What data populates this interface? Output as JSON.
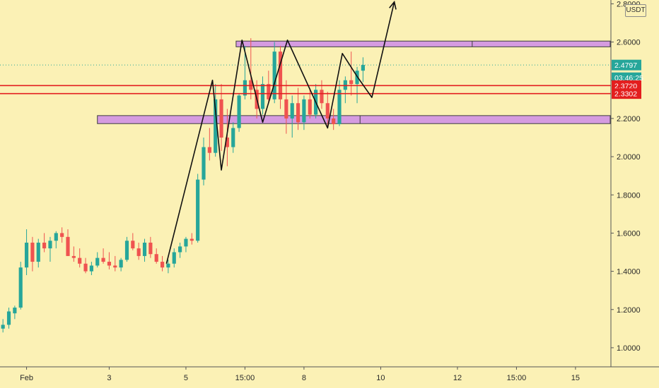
{
  "currency_badge": "USDT",
  "chart_data": {
    "type": "candlestick",
    "price_axis": {
      "ticks": [
        1.0,
        1.2,
        1.4,
        1.6,
        1.8,
        2.0,
        2.2,
        2.4,
        2.6,
        2.8
      ],
      "tick_labels": [
        "1.0000",
        "1.2000",
        "1.4000",
        "1.6000",
        "1.8000",
        "2.0000",
        "2.2000",
        "2.4000",
        "2.6000",
        "2.8000"
      ],
      "range": [
        0.9,
        2.82
      ]
    },
    "time_axis": {
      "labels": [
        {
          "label": "Feb",
          "index": 4
        },
        {
          "label": "3",
          "index": 18
        },
        {
          "label": "5",
          "index": 31
        },
        {
          "label": "15:00",
          "index": 41
        },
        {
          "label": "8",
          "index": 51
        },
        {
          "label": "10",
          "index": 64
        },
        {
          "label": "12",
          "index": 77
        },
        {
          "label": "15:00",
          "index": 87
        },
        {
          "label": "15",
          "index": 97
        }
      ],
      "index_range": [
        -0.5,
        103
      ]
    },
    "candles": [
      [
        1.1,
        1.15,
        1.08,
        1.12
      ],
      [
        1.12,
        1.21,
        1.1,
        1.19
      ],
      [
        1.18,
        1.22,
        1.15,
        1.21
      ],
      [
        1.21,
        1.45,
        1.2,
        1.42
      ],
      [
        1.42,
        1.62,
        1.38,
        1.55
      ],
      [
        1.55,
        1.58,
        1.4,
        1.45
      ],
      [
        1.45,
        1.57,
        1.42,
        1.55
      ],
      [
        1.55,
        1.6,
        1.5,
        1.52
      ],
      [
        1.52,
        1.58,
        1.45,
        1.56
      ],
      [
        1.56,
        1.61,
        1.52,
        1.6
      ],
      [
        1.6,
        1.63,
        1.55,
        1.58
      ],
      [
        1.58,
        1.62,
        1.48,
        1.48
      ],
      [
        1.48,
        1.53,
        1.45,
        1.47
      ],
      [
        1.47,
        1.52,
        1.42,
        1.44
      ],
      [
        1.44,
        1.47,
        1.39,
        1.4
      ],
      [
        1.4,
        1.45,
        1.38,
        1.43
      ],
      [
        1.43,
        1.5,
        1.42,
        1.47
      ],
      [
        1.47,
        1.52,
        1.44,
        1.45
      ],
      [
        1.45,
        1.5,
        1.41,
        1.43
      ],
      [
        1.43,
        1.48,
        1.4,
        1.42
      ],
      [
        1.42,
        1.47,
        1.4,
        1.46
      ],
      [
        1.46,
        1.58,
        1.45,
        1.56
      ],
      [
        1.56,
        1.6,
        1.51,
        1.52
      ],
      [
        1.52,
        1.55,
        1.46,
        1.48
      ],
      [
        1.48,
        1.57,
        1.45,
        1.55
      ],
      [
        1.55,
        1.58,
        1.47,
        1.49
      ],
      [
        1.49,
        1.52,
        1.44,
        1.45
      ],
      [
        1.45,
        1.48,
        1.4,
        1.42
      ],
      [
        1.42,
        1.46,
        1.39,
        1.44
      ],
      [
        1.44,
        1.52,
        1.42,
        1.5
      ],
      [
        1.5,
        1.55,
        1.47,
        1.53
      ],
      [
        1.53,
        1.58,
        1.5,
        1.57
      ],
      [
        1.57,
        1.6,
        1.54,
        1.56
      ],
      [
        1.56,
        1.91,
        1.55,
        1.88
      ],
      [
        1.88,
        2.1,
        1.85,
        2.05
      ],
      [
        2.05,
        2.15,
        1.98,
        2.02
      ],
      [
        2.02,
        2.38,
        2.0,
        2.3
      ],
      [
        2.3,
        2.38,
        2.03,
        2.1
      ],
      [
        2.1,
        2.25,
        1.95,
        2.05
      ],
      [
        2.05,
        2.18,
        2.02,
        2.15
      ],
      [
        2.15,
        2.33,
        2.13,
        2.32
      ],
      [
        2.32,
        2.58,
        2.3,
        2.4
      ],
      [
        2.4,
        2.62,
        2.3,
        2.35
      ],
      [
        2.35,
        2.4,
        2.2,
        2.25
      ],
      [
        2.25,
        2.42,
        2.22,
        2.38
      ],
      [
        2.38,
        2.45,
        2.28,
        2.3
      ],
      [
        2.3,
        2.6,
        2.28,
        2.55
      ],
      [
        2.55,
        2.58,
        2.25,
        2.3
      ],
      [
        2.3,
        2.4,
        2.12,
        2.2
      ],
      [
        2.2,
        2.32,
        2.1,
        2.28
      ],
      [
        2.28,
        2.36,
        2.14,
        2.18
      ],
      [
        2.18,
        2.32,
        2.14,
        2.3
      ],
      [
        2.3,
        2.36,
        2.2,
        2.22
      ],
      [
        2.22,
        2.38,
        2.2,
        2.35
      ],
      [
        2.35,
        2.4,
        2.25,
        2.28
      ],
      [
        2.28,
        2.34,
        2.15,
        2.2
      ],
      [
        2.2,
        2.25,
        2.14,
        2.17
      ],
      [
        2.17,
        2.4,
        2.16,
        2.35
      ],
      [
        2.35,
        2.42,
        2.28,
        2.4
      ],
      [
        2.4,
        2.55,
        2.32,
        2.38
      ],
      [
        2.38,
        2.47,
        2.28,
        2.45
      ],
      [
        2.45,
        2.52,
        2.39,
        2.48
      ]
    ],
    "annotations": {
      "red_lines": [
        2.372,
        2.3302
      ],
      "dotted_price_line": 2.4797,
      "zones": [
        {
          "x": [
            39.5,
            103
          ],
          "top": 2.605,
          "bottom": 2.575,
          "segment_split": 79.5
        },
        {
          "x": [
            16.0,
            103
          ],
          "top": 2.215,
          "bottom": 2.173,
          "segment_split": 60.5
        }
      ],
      "pattern_path": [
        [
          27.7,
          1.44
        ],
        [
          35.5,
          2.4
        ],
        [
          37.0,
          1.93
        ],
        [
          40.5,
          2.61
        ],
        [
          44.0,
          2.18
        ],
        [
          48.2,
          2.61
        ],
        [
          55.0,
          2.15
        ],
        [
          57.5,
          2.54
        ],
        [
          60.0,
          2.42
        ],
        [
          62.5,
          2.31
        ],
        [
          66.3,
          2.81
        ]
      ]
    },
    "price_tags": [
      {
        "price": 2.4797,
        "text": "2.4797",
        "color": "#26a69a"
      },
      {
        "price": 2.413,
        "text": "03:46:25",
        "color": "#26a69a"
      },
      {
        "price": 2.372,
        "text": "2.3720",
        "color": "#e31e1e"
      },
      {
        "price": 2.3302,
        "text": "2.3302",
        "color": "#e31e1e"
      }
    ],
    "colors": {
      "up": "#26a69a",
      "down": "#ef5350",
      "zone_fill": "#d59be0",
      "zone_stroke": "#3d3d3d",
      "red_line": "#e31e1e",
      "pattern": "#111111",
      "background": "#fbf1b5"
    }
  }
}
